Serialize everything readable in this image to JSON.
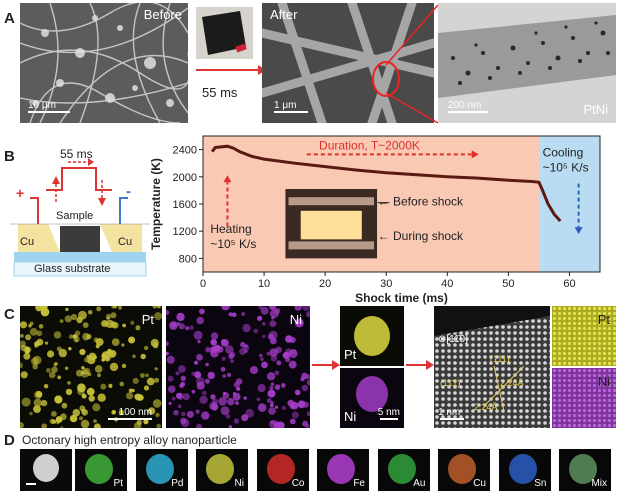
{
  "panelA": {
    "letter": "A",
    "before_label": "Before",
    "before_scale": "10 μm",
    "time_label": "55 ms",
    "after_label": "After",
    "after_scale": "1 μm",
    "tem_scale": "200 nm",
    "tem_label": "PtNi"
  },
  "panelB": {
    "letter": "B",
    "time_label": "55 ms",
    "sample_label": "Sample",
    "cu_left": "Cu",
    "cu_right": "Cu",
    "substrate_label": "Glass substrate",
    "plus_sign": "+",
    "minus_sign": "-"
  },
  "chart_data": {
    "type": "line",
    "xlabel": "Shock time (ms)",
    "ylabel": "Temperature (K)",
    "xlim": [
      0,
      65
    ],
    "ylim": [
      600,
      2600
    ],
    "xticks": [
      "0",
      "10",
      "20",
      "30",
      "40",
      "50",
      "60"
    ],
    "yticks": [
      "800",
      "1200",
      "1600",
      "2000",
      "2400"
    ],
    "series": [
      {
        "x": [
          1.5,
          2,
          3,
          4,
          5,
          6,
          8,
          10,
          15,
          20,
          25,
          30,
          35,
          40,
          45,
          50,
          54,
          55,
          55.6,
          56.5,
          57.5,
          58.5
        ],
        "y": [
          2370,
          2430,
          2440,
          2450,
          2420,
          2370,
          2300,
          2260,
          2200,
          2150,
          2100,
          2060,
          2030,
          2000,
          1980,
          1950,
          1930,
          1920,
          1800,
          1600,
          1450,
          1350
        ]
      }
    ],
    "annotations": {
      "duration": "Duration, T~2000K",
      "heating_1": "Heating",
      "heating_2": "~10⁵ K/s",
      "cooling_1": "Cooling",
      "cooling_2": "~10⁵ K/s",
      "before_shock": "Before shock",
      "during_shock": "During shock"
    },
    "colors": {
      "heating_region": "#f9c9b4",
      "cooling_region": "#b9dcf2",
      "line": "#5a1a12"
    }
  },
  "panelC": {
    "letter": "C",
    "pt_label": "Pt",
    "ni_label": "Ni",
    "scale_100": "100 nm",
    "small_pt": "Pt",
    "small_ni": "Ni",
    "scale_5": "5 nm",
    "zone_axis": "⊗[11̄0]",
    "plane_a": "(111)",
    "plane_b": "(11̄1)",
    "d1": "2.24Å",
    "d2": "2.24Å",
    "scale_1": "1 nm",
    "right_pt": "Pt",
    "right_ni": "Ni"
  },
  "panelD": {
    "letter": "D",
    "title": "Octonary high entropy alloy nanoparticle",
    "elements": [
      "Pt",
      "Pd",
      "Ni",
      "Co",
      "Fe",
      "Au",
      "Cu",
      "Sn",
      "Mix"
    ]
  }
}
